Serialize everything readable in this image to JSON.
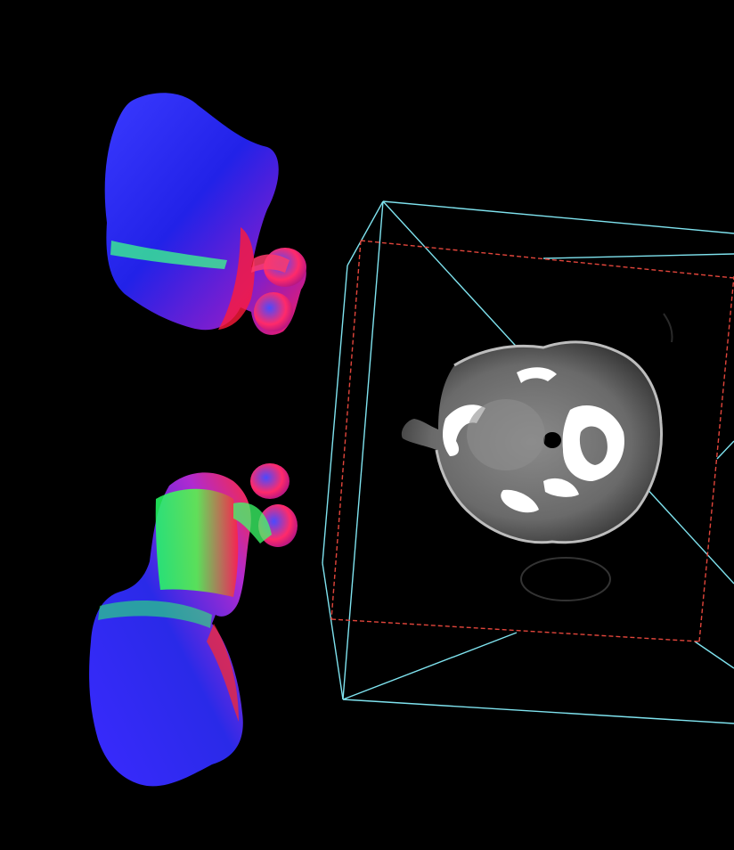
{
  "viewport": {
    "background": "#000000"
  },
  "scene": {
    "bounding_box_colors": {
      "primary": "#7fe3ef",
      "secondary": "#e2453b"
    },
    "ct_slice": {
      "view": "axial",
      "palette": "grayscale",
      "tissue_color": "#6f6f6f",
      "bone_color": "#ffffff",
      "air_color": "#000000"
    },
    "meshes": [
      {
        "name": "upper-mesh",
        "shading": "normal-map",
        "dominant_color": "#2a2af0",
        "accent_colors": [
          "#ff1a4a",
          "#3cff6a",
          "#c030ff"
        ]
      },
      {
        "name": "lower-mesh",
        "shading": "normal-map",
        "dominant_color": "#2a2af0",
        "accent_colors": [
          "#ff1a4a",
          "#3cff6a",
          "#c030ff"
        ]
      }
    ]
  }
}
